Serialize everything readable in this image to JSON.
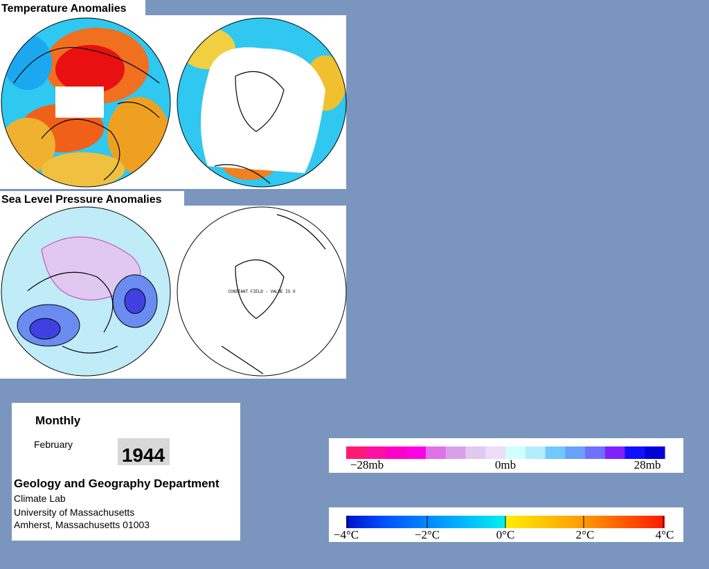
{
  "panels": {
    "temperature": {
      "title": "Temperature Anomalies"
    },
    "pressure": {
      "title": "Sea Level Pressure Anomalies",
      "note": "CONSTANT FIELD - VALUE IS 0"
    }
  },
  "info": {
    "period": "Monthly",
    "month": "February",
    "year": "1944",
    "department": "Geology and Geography Department",
    "lines": [
      "Climate Lab",
      "University of Massachusetts",
      "Amherst, Massachusetts 01003"
    ]
  },
  "legends": {
    "pressure": {
      "labels": [
        "−28mb",
        "0mb",
        "28mb"
      ]
    },
    "temperature": {
      "labels": [
        "−4°C",
        "−2°C",
        "0°C",
        "2°C",
        "4°C"
      ]
    }
  }
}
